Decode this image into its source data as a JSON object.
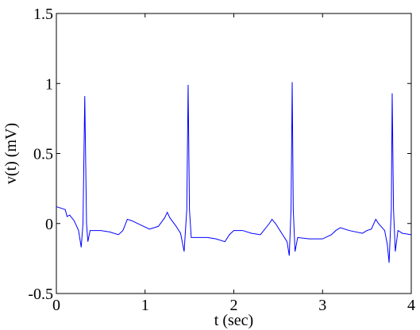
{
  "chart_data": {
    "type": "line",
    "xlabel": "t (sec)",
    "ylabel": "v(t) (mV)",
    "xlim": [
      0,
      4
    ],
    "ylim": [
      -0.5,
      1.5
    ],
    "xticks": [
      0,
      1,
      2,
      3,
      4
    ],
    "yticks": [
      -0.5,
      0,
      0.5,
      1,
      1.5
    ],
    "series": [
      {
        "color": "#0000ff",
        "x": [
          0,
          0.05,
          0.1,
          0.12,
          0.15,
          0.2,
          0.25,
          0.28,
          0.3,
          0.32,
          0.34,
          0.355,
          0.38,
          0.5,
          0.6,
          0.7,
          0.75,
          0.8,
          0.85,
          0.95,
          1.05,
          1.15,
          1.22,
          1.25,
          1.28,
          1.35,
          1.4,
          1.44,
          1.47,
          1.485,
          1.5,
          1.52,
          1.55,
          1.7,
          1.8,
          1.9,
          1.95,
          2.0,
          2.1,
          2.2,
          2.3,
          2.4,
          2.43,
          2.47,
          2.52,
          2.55,
          2.6,
          2.625,
          2.645,
          2.658,
          2.67,
          2.69,
          2.72,
          2.85,
          3.0,
          3.1,
          3.15,
          3.2,
          3.3,
          3.45,
          3.5,
          3.55,
          3.6,
          3.63,
          3.7,
          3.73,
          3.75,
          3.775,
          3.785,
          3.8,
          3.82,
          3.85,
          3.9,
          4.0
        ],
        "values": [
          0.12,
          0.11,
          0.1,
          0.05,
          0.06,
          0.02,
          -0.05,
          -0.17,
          0.0,
          0.91,
          0.0,
          -0.13,
          -0.05,
          -0.05,
          -0.06,
          -0.08,
          -0.05,
          0.03,
          0.02,
          -0.01,
          -0.04,
          -0.02,
          0.04,
          0.08,
          0.04,
          -0.02,
          -0.07,
          -0.2,
          0.1,
          0.99,
          0.1,
          -0.1,
          -0.1,
          -0.1,
          -0.11,
          -0.13,
          -0.08,
          -0.05,
          -0.05,
          -0.07,
          -0.08,
          0.0,
          0.03,
          0.0,
          -0.05,
          -0.08,
          -0.13,
          -0.23,
          0.1,
          1.01,
          0.1,
          -0.2,
          -0.1,
          -0.11,
          -0.11,
          -0.08,
          -0.05,
          -0.03,
          -0.05,
          -0.07,
          -0.05,
          -0.04,
          0.03,
          0.0,
          -0.05,
          -0.15,
          -0.28,
          0.1,
          0.93,
          0.1,
          -0.2,
          -0.05,
          -0.07,
          -0.08
        ]
      }
    ]
  }
}
